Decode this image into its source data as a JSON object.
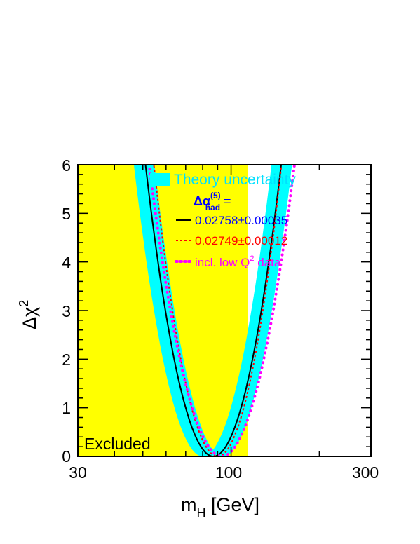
{
  "chart_data": {
    "type": "line",
    "x_scale": "log",
    "xlim": [
      30,
      300
    ],
    "ylim": [
      0,
      6
    ],
    "xlabel_main": "m",
    "xlabel_sub": "H",
    "xlabel_unit": " [GeV]",
    "ylabel_main": "Δχ",
    "ylabel_sup": "2",
    "x_ticks": [
      30,
      100,
      300
    ],
    "x_tick_labels": [
      "30",
      "100",
      "300"
    ],
    "y_ticks": [
      0,
      1,
      2,
      3,
      4,
      5,
      6
    ],
    "y_tick_labels": [
      "0",
      "1",
      "2",
      "3",
      "4",
      "5",
      "6"
    ],
    "excluded_region": {
      "x_max": 114,
      "label": "Excluded",
      "color": "#ffff00"
    },
    "theory_band": {
      "name": "Theory uncertainty",
      "color": "#00ffff",
      "center_min": 87,
      "low_min": 80,
      "high_min": 94,
      "a": 6.8
    },
    "legend_header": {
      "main": "Δα",
      "sup": "(5)",
      "sub": "had",
      "tail": " ="
    },
    "series": [
      {
        "name": "0.02758±0.00035",
        "color": "#0000ff",
        "line_color": "#000000",
        "style": "solid",
        "min_x": 87,
        "a": 7.0
      },
      {
        "name": "0.02749±0.00012",
        "color": "#ff0000",
        "line_color": "#ff0000",
        "style": "dashed",
        "min_x": 90,
        "a": 7.9
      },
      {
        "name": "incl. low Q2 data",
        "label_main": "incl. low Q",
        "label_sup": "2",
        "label_tail": " data",
        "color": "#ff00ff",
        "line_color": "#ff00ff",
        "style": "dotted",
        "min_x": 93,
        "a": 6.1
      }
    ]
  }
}
